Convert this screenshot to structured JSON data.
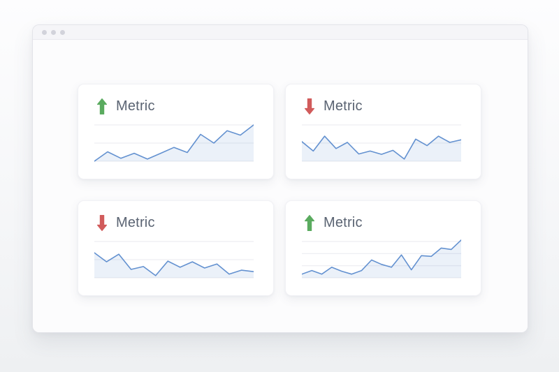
{
  "window": {
    "type": "browser-window-mockup",
    "controls": [
      {
        "icon": "window-dot-icon"
      },
      {
        "icon": "window-dot-icon"
      },
      {
        "icon": "window-dot-icon"
      }
    ]
  },
  "colors": {
    "line": "#6391d0",
    "fill": "rgba(99,145,208,0.13)",
    "grid": "#e9eaef",
    "up": "#5aab5f",
    "down": "#d15b5b",
    "label": "#5a6372"
  },
  "cards": [
    {
      "label": "Metric",
      "trend": "up",
      "arrow_icon": "trend-up-icon",
      "chart_data": {
        "type": "line",
        "title": "Metric",
        "values": [
          0,
          26,
          8,
          22,
          6,
          22,
          38,
          24,
          74,
          50,
          84,
          72,
          100
        ],
        "ylim": [
          0,
          100
        ],
        "gridlines": 3,
        "xlabel": "",
        "ylabel": "",
        "legend": "none"
      }
    },
    {
      "label": "Metric",
      "trend": "down",
      "arrow_icon": "trend-down-icon",
      "chart_data": {
        "type": "line",
        "title": "Metric",
        "values": [
          54,
          28,
          69,
          35,
          52,
          20,
          28,
          19,
          30,
          6,
          61,
          43,
          69,
          52,
          59
        ],
        "ylim": [
          0,
          100
        ],
        "gridlines": 3,
        "xlabel": "",
        "ylabel": "",
        "legend": "none"
      }
    },
    {
      "label": "Metric",
      "trend": "down",
      "arrow_icon": "trend-down-icon",
      "chart_data": {
        "type": "line",
        "title": "Metric",
        "values": [
          69,
          44,
          65,
          23,
          31,
          6,
          46,
          29,
          44,
          27,
          38,
          10,
          21,
          17
        ],
        "ylim": [
          0,
          100
        ],
        "gridlines": 3,
        "xlabel": "",
        "ylabel": "",
        "legend": "none"
      }
    },
    {
      "label": "Metric",
      "trend": "up",
      "arrow_icon": "trend-up-icon",
      "chart_data": {
        "type": "line",
        "title": "Metric",
        "values": [
          10,
          20,
          10,
          29,
          18,
          10,
          20,
          49,
          37,
          29,
          63,
          22,
          61,
          59,
          82,
          78,
          104
        ],
        "ylim": [
          0,
          110
        ],
        "gridlines": 4,
        "xlabel": "",
        "ylabel": "",
        "legend": "none"
      }
    }
  ]
}
